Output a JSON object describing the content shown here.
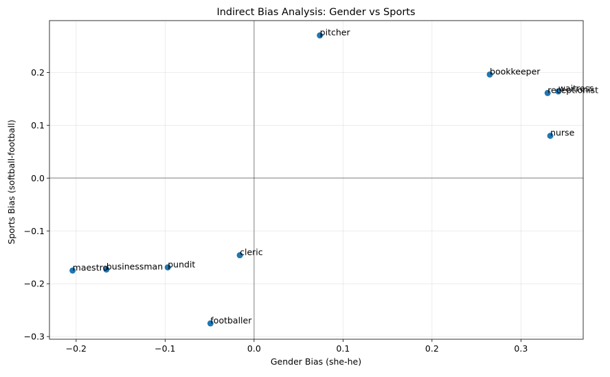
{
  "chart_data": {
    "type": "scatter",
    "title": "Indirect Bias Analysis: Gender vs Sports",
    "xlabel": "Gender Bias (she-he)",
    "ylabel": "Sports Bias (softball-football)",
    "xlim": [
      -0.23,
      0.37
    ],
    "ylim": [
      -0.305,
      0.298
    ],
    "x_ticks": [
      -0.2,
      -0.1,
      0.0,
      0.1,
      0.2,
      0.3
    ],
    "x_tick_labels": [
      "−0.2",
      "−0.1",
      "0.0",
      "0.1",
      "0.2",
      "0.3"
    ],
    "y_ticks": [
      -0.3,
      -0.2,
      -0.1,
      0.0,
      0.1,
      0.2
    ],
    "y_tick_labels": [
      "−0.3",
      "−0.2",
      "−0.1",
      "0.0",
      "0.1",
      "0.2"
    ],
    "grid": true,
    "reference_lines": {
      "x": 0,
      "y": 0
    },
    "marker_color": "#1f77b4",
    "points": [
      {
        "label": "pitcher",
        "x": 0.074,
        "y": 0.27
      },
      {
        "label": "bookkeeper",
        "x": 0.265,
        "y": 0.196
      },
      {
        "label": "waitress",
        "x": 0.342,
        "y": 0.164
      },
      {
        "label": "receptionist",
        "x": 0.33,
        "y": 0.161
      },
      {
        "label": "nurse",
        "x": 0.333,
        "y": 0.08
      },
      {
        "label": "cleric",
        "x": -0.016,
        "y": -0.146
      },
      {
        "label": "pundit",
        "x": -0.097,
        "y": -0.169
      },
      {
        "label": "businessman",
        "x": -0.166,
        "y": -0.173
      },
      {
        "label": "maestro",
        "x": -0.204,
        "y": -0.175
      },
      {
        "label": "footballer",
        "x": -0.049,
        "y": -0.275
      }
    ]
  }
}
